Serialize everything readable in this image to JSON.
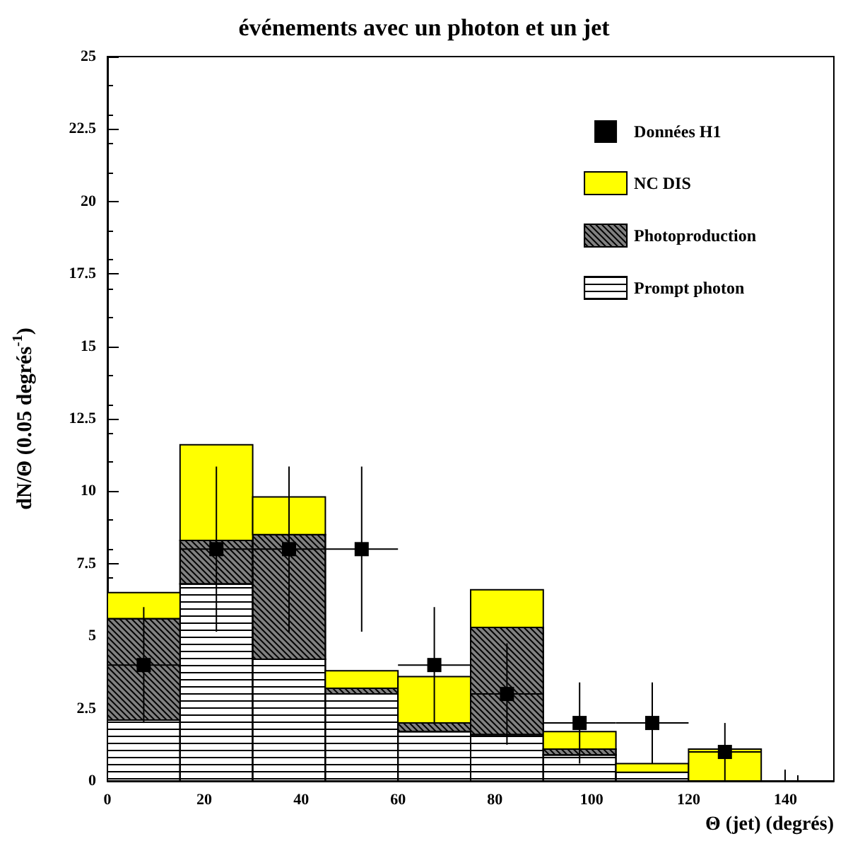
{
  "chart_data": {
    "type": "bar",
    "title": "événements avec un photon et un jet",
    "xlabel": "Θ (jet) (degrés)",
    "ylabel": "dN/Θ (0.05 degrés$^{-1}$)",
    "x": [
      7.5,
      22.5,
      37.5,
      52.5,
      67.5,
      82.5,
      97.5,
      112.5,
      127.5
    ],
    "stacked": true,
    "series": [
      {
        "name": "Prompt photon",
        "color": "#ffffff",
        "values": [
          2.1,
          6.8,
          4.2,
          3.0,
          1.7,
          1.6,
          0.9,
          0.3,
          0
        ]
      },
      {
        "name": "Photoproduction",
        "color": "#808080",
        "values": [
          3.5,
          1.5,
          4.3,
          0.2,
          0.3,
          3.7,
          0.2,
          0,
          0
        ]
      },
      {
        "name": "NC DIS",
        "color": "#ffff00",
        "values": [
          0.9,
          3.3,
          1.3,
          0.6,
          1.6,
          1.3,
          0.6,
          0.3,
          1.1
        ]
      },
      {
        "name": "Données H1",
        "type": "scatter",
        "color": "#000000",
        "marker": "square",
        "values": [
          4,
          8,
          8,
          8,
          4,
          3,
          2,
          2,
          1
        ],
        "errors": [
          2,
          2.85,
          2.85,
          2.85,
          2,
          1.75,
          1.4,
          1.4,
          1
        ],
        "xerrors": [
          7.5,
          7.5,
          7.5,
          7.5,
          7.5,
          7.5,
          7.5,
          7.5,
          7.5
        ]
      }
    ],
    "xlim": [
      0,
      150
    ],
    "xticks": [
      0,
      20,
      40,
      60,
      80,
      100,
      120,
      140
    ],
    "ylim": [
      0,
      25
    ],
    "yticks": [
      0,
      2.5,
      5,
      7.5,
      10,
      12.5,
      15,
      17.5,
      20,
      22.5,
      25
    ],
    "grid": false,
    "legend": "top right"
  }
}
